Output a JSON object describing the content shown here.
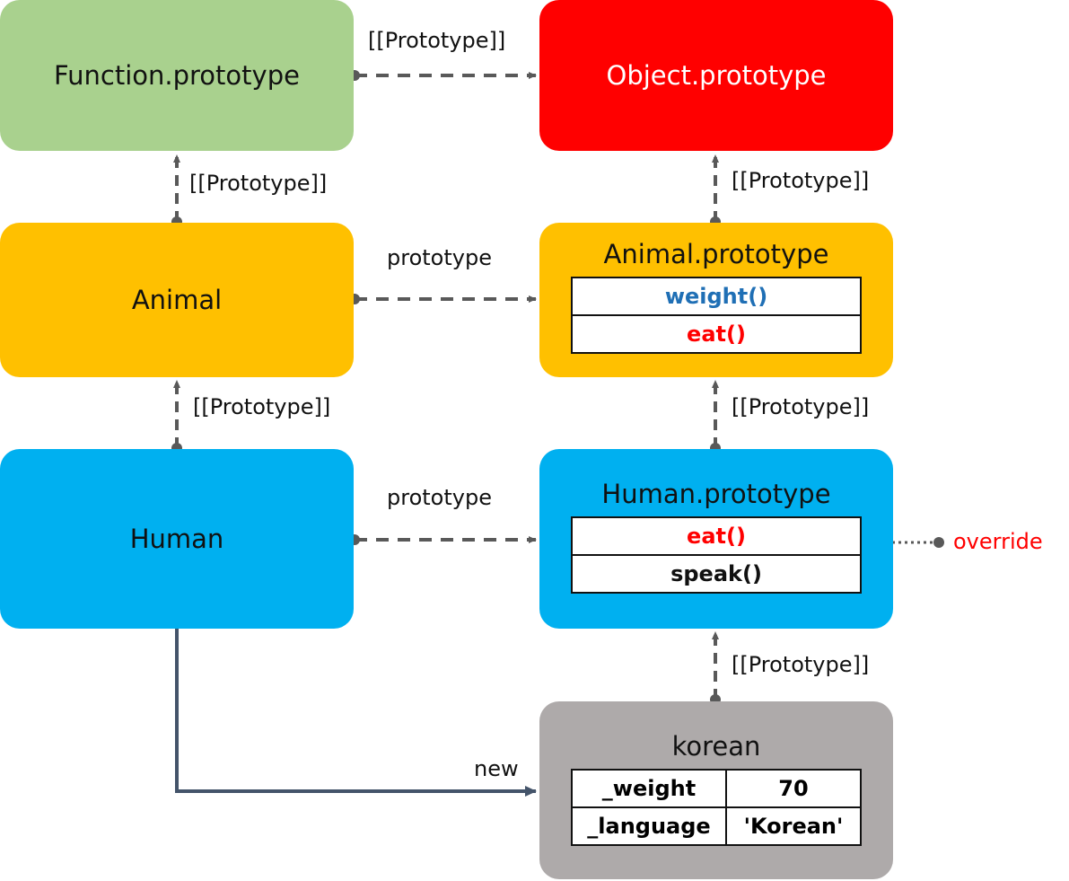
{
  "nodes": {
    "function_prototype": {
      "title": "Function.prototype",
      "color": "#a9d18e"
    },
    "object_prototype": {
      "title": "Object.prototype",
      "color": "#ff0000",
      "text_color": "#ffffff"
    },
    "animal": {
      "title": "Animal",
      "color": "#ffc000"
    },
    "animal_prototype": {
      "title": "Animal.prototype",
      "color": "#ffc000",
      "methods": [
        {
          "label": "weight()",
          "color": "#1f6fb5"
        },
        {
          "label": "eat()",
          "color": "#ff0000"
        }
      ]
    },
    "human": {
      "title": "Human",
      "color": "#00b0f0"
    },
    "human_prototype": {
      "title": "Human.prototype",
      "color": "#00b0f0",
      "methods": [
        {
          "label": "eat()",
          "color": "#ff0000"
        },
        {
          "label": "speak()",
          "color": "#111111"
        }
      ]
    },
    "korean": {
      "title": "korean",
      "color": "#aeaaaa",
      "properties": [
        {
          "key": "_weight",
          "value": "70"
        },
        {
          "key": "_language",
          "value": "'Korean'"
        }
      ]
    }
  },
  "labels": {
    "fp_to_op": "[[Prototype]]",
    "animal_to_fp": "[[Prototype]]",
    "ap_to_op": "[[Prototype]]",
    "animal_to_ap": "prototype",
    "human_to_animal": "[[Prototype]]",
    "hp_to_ap": "[[Prototype]]",
    "human_to_hp": "prototype",
    "override": "override",
    "korean_to_hp": "[[Prototype]]",
    "new": "new"
  },
  "colors": {
    "connector": "#595959",
    "new_arrow": "#44546a",
    "override": "#ff0000"
  }
}
